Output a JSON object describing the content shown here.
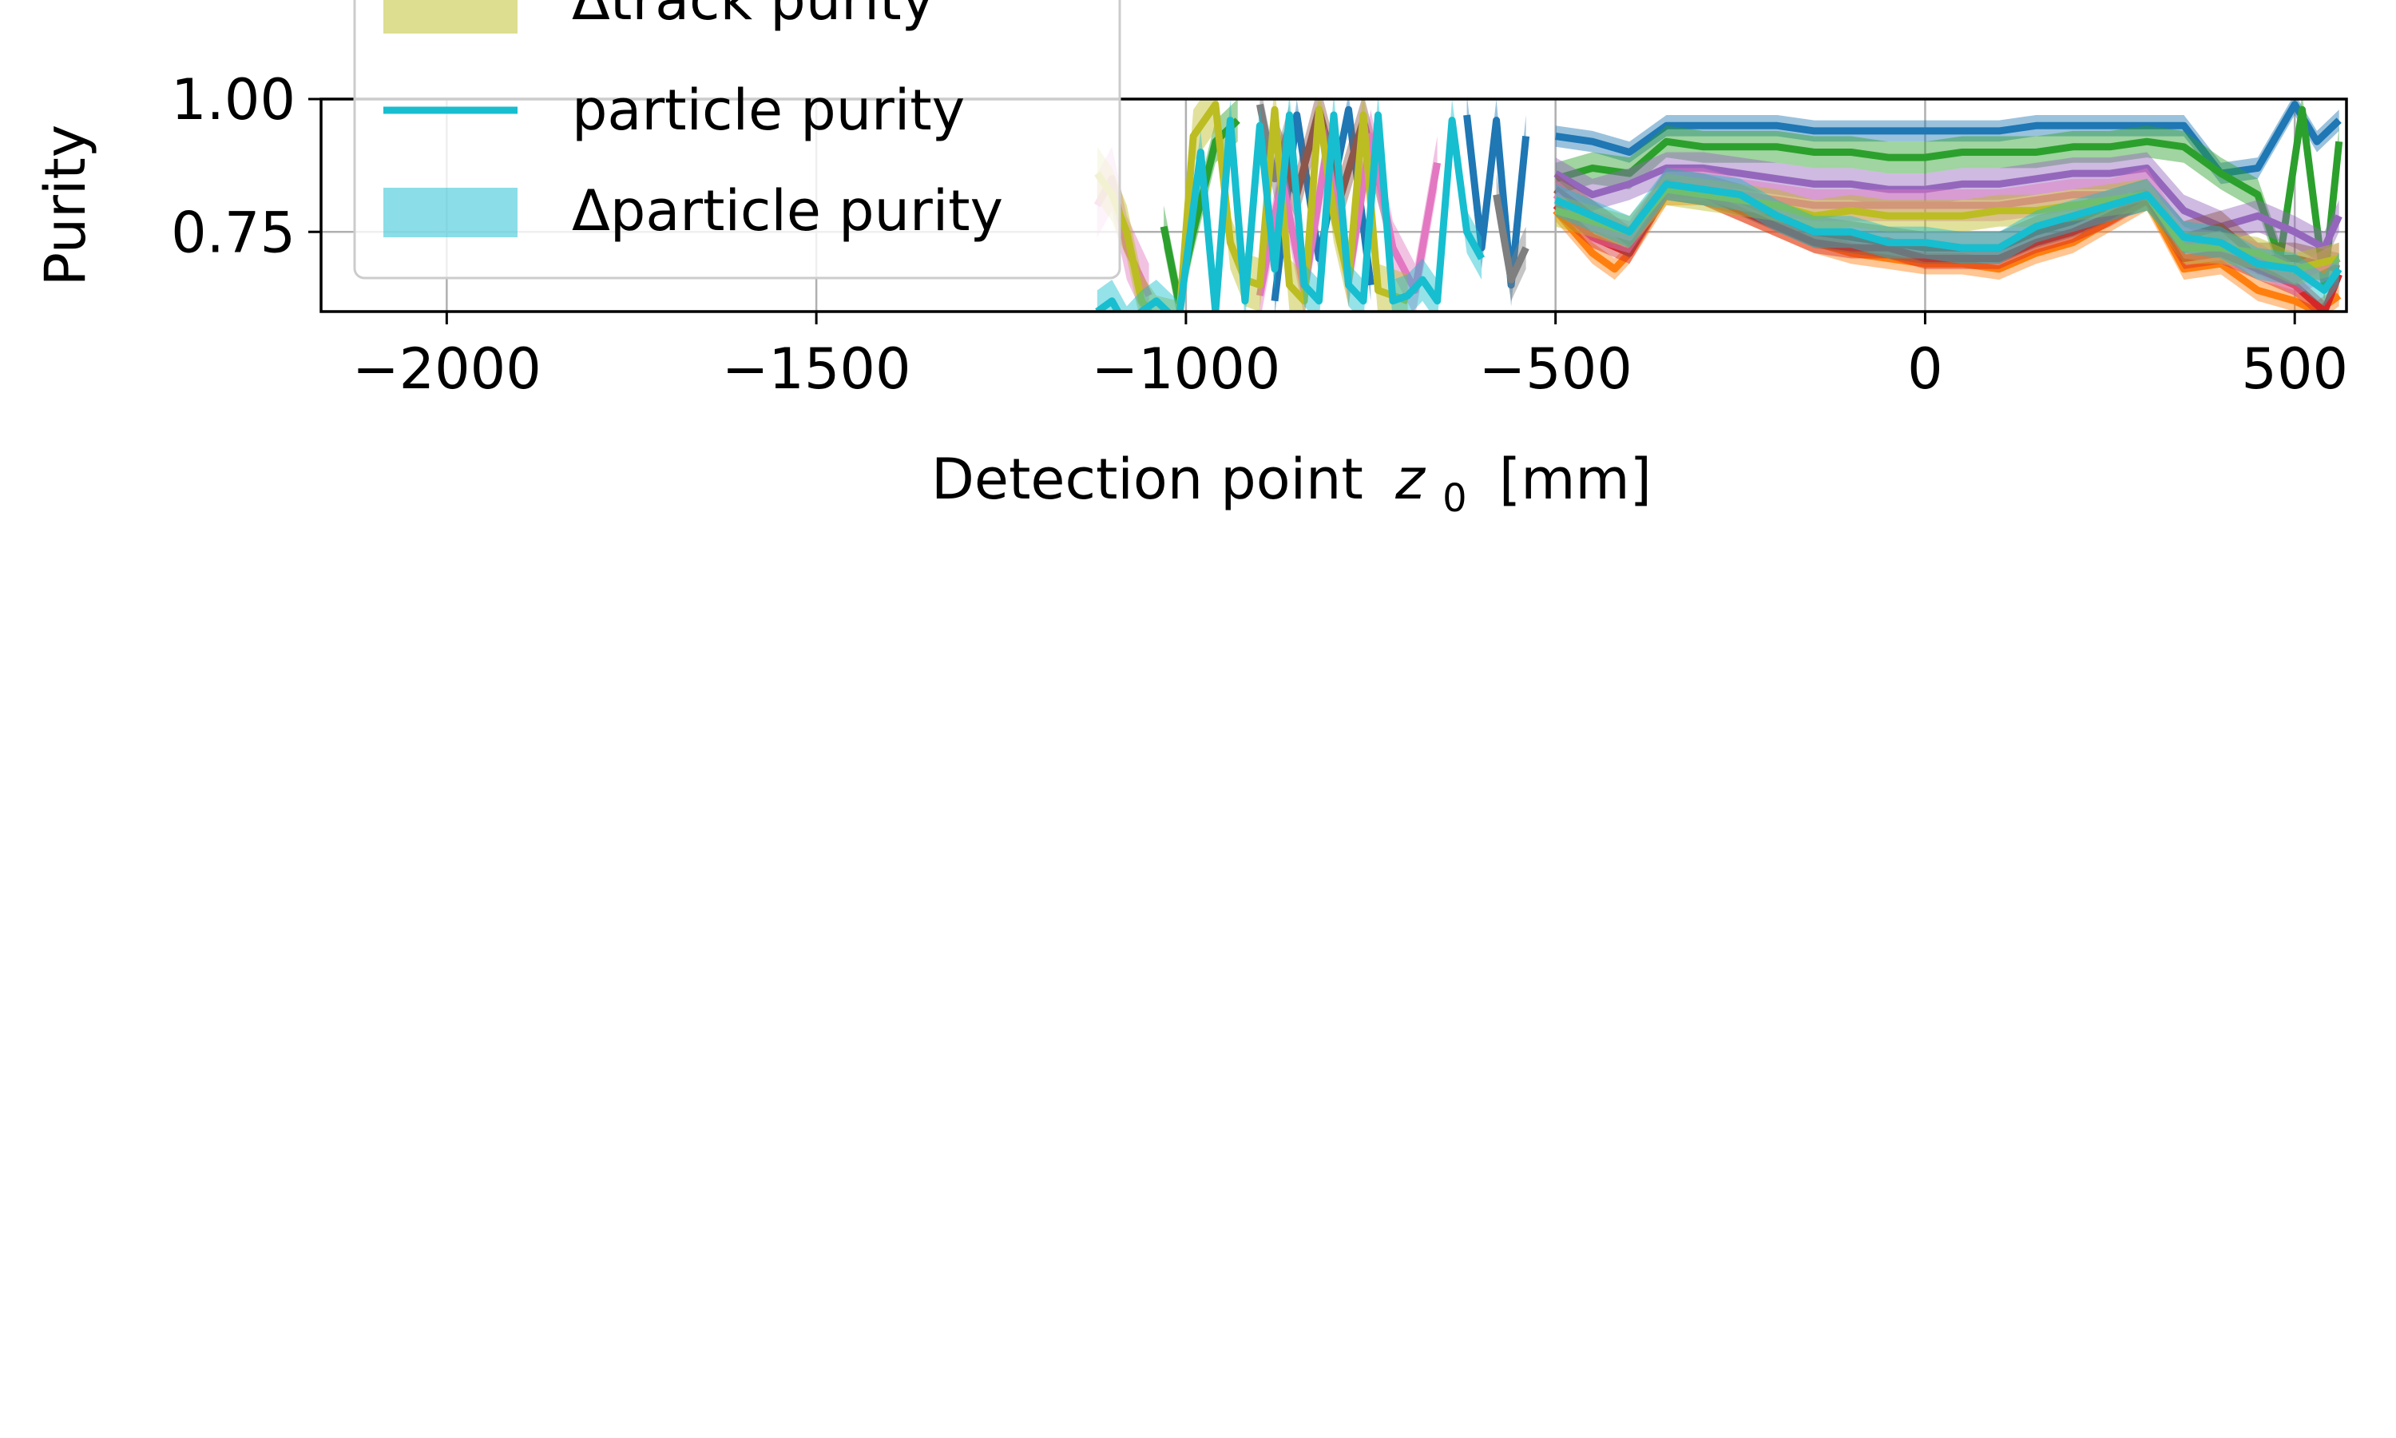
{
  "chart_data": {
    "type": "line",
    "title": "",
    "xlabel": "Detection point",
    "xlabel_math": "z",
    "xlabel_sub": "0",
    "xlabel_unit": "[mm]",
    "ylabel": "Purity",
    "xlim": [
      -2170,
      570
    ],
    "ylim": [
      0.6,
      1.0
    ],
    "xticks": [
      {
        "value": -2000,
        "label": "−2000"
      },
      {
        "value": -1500,
        "label": "−1500"
      },
      {
        "value": -1000,
        "label": "−1000"
      },
      {
        "value": -500,
        "label": "−500"
      },
      {
        "value": 0,
        "label": "0"
      },
      {
        "value": 500,
        "label": "500"
      }
    ],
    "yticks": [
      {
        "value": 1.0,
        "label": "1.00"
      },
      {
        "value": 0.75,
        "label": "0.75"
      }
    ],
    "grid": true,
    "legend": {
      "placement": "top-left",
      "entries": [
        {
          "label": "Δtrack purity",
          "kind": "band",
          "color": "#bcbd22"
        },
        {
          "label": "particle purity",
          "kind": "line",
          "color": "#17becf"
        },
        {
          "label": "Δparticle purity",
          "kind": "band",
          "color": "#17becf"
        }
      ]
    },
    "series": [
      {
        "color": "#1f77b4",
        "segments": [
          {
            "x": [
              -880,
              -850,
              -820,
              -780,
              -750
            ],
            "y": [
              0.62,
              0.97,
              0.7,
              0.98,
              0.65
            ],
            "band": 0.03
          },
          {
            "x": [
              -620,
              -600,
              -580,
              -560,
              -540
            ],
            "y": [
              0.97,
              0.72,
              0.96,
              0.65,
              0.93
            ],
            "band": 0.04
          },
          {
            "x": [
              -500,
              -450,
              -400,
              -350,
              -300,
              -250,
              -200,
              -150,
              -100,
              -50,
              0,
              50,
              100,
              150,
              200,
              250,
              300,
              350,
              400,
              450,
              500,
              530,
              560
            ],
            "y": [
              0.93,
              0.92,
              0.9,
              0.95,
              0.95,
              0.95,
              0.95,
              0.94,
              0.94,
              0.94,
              0.94,
              0.94,
              0.94,
              0.95,
              0.95,
              0.95,
              0.95,
              0.95,
              0.86,
              0.87,
              0.99,
              0.92,
              0.96
            ],
            "band": 0.02
          }
        ]
      },
      {
        "color": "#ff7f0e",
        "segments": [
          {
            "x": [
              -500,
              -450,
              -420,
              -400,
              -350,
              -300,
              -250,
              -200,
              -150,
              -100,
              -50,
              0,
              50,
              100,
              150,
              200,
              250,
              300,
              350,
              400,
              450,
              500,
              530,
              560
            ],
            "y": [
              0.79,
              0.71,
              0.68,
              0.71,
              0.82,
              0.82,
              0.79,
              0.76,
              0.73,
              0.71,
              0.7,
              0.69,
              0.69,
              0.68,
              0.71,
              0.73,
              0.77,
              0.81,
              0.68,
              0.69,
              0.64,
              0.62,
              0.6,
              0.63
            ],
            "band": 0.02
          }
        ]
      },
      {
        "color": "#2ca02c",
        "segments": [
          {
            "x": [
              -1030,
              -1010,
              -990,
              -960,
              -930
            ],
            "y": [
              0.76,
              0.62,
              0.75,
              0.92,
              0.96
            ],
            "band": 0.04
          },
          {
            "x": [
              -500,
              -450,
              -400,
              -350,
              -300,
              -250,
              -200,
              -150,
              -100,
              -50,
              0,
              50,
              100,
              150,
              200,
              250,
              300,
              350,
              400,
              450,
              480,
              510,
              540,
              560
            ],
            "y": [
              0.85,
              0.87,
              0.86,
              0.92,
              0.91,
              0.91,
              0.91,
              0.9,
              0.9,
              0.89,
              0.89,
              0.9,
              0.9,
              0.9,
              0.91,
              0.91,
              0.92,
              0.91,
              0.86,
              0.82,
              0.7,
              0.98,
              0.65,
              0.92
            ],
            "band": 0.03
          }
        ]
      },
      {
        "color": "#d62728",
        "segments": [
          {
            "x": [
              -500,
              -450,
              -400,
              -350,
              -300,
              -250,
              -200,
              -150,
              -100,
              -50,
              0,
              50,
              100,
              150,
              200,
              250,
              300,
              350,
              400,
              450,
              500,
              540,
              560
            ],
            "y": [
              0.8,
              0.74,
              0.71,
              0.83,
              0.82,
              0.79,
              0.76,
              0.73,
              0.72,
              0.72,
              0.7,
              0.7,
              0.7,
              0.73,
              0.75,
              0.78,
              0.82,
              0.7,
              0.71,
              0.68,
              0.65,
              0.6,
              0.67
            ],
            "band": 0.02
          }
        ]
      },
      {
        "color": "#9467bd",
        "segments": [
          {
            "x": [
              -500,
              -450,
              -400,
              -350,
              -300,
              -250,
              -200,
              -150,
              -100,
              -50,
              0,
              50,
              100,
              150,
              200,
              250,
              300,
              350,
              400,
              450,
              500,
              540,
              560
            ],
            "y": [
              0.86,
              0.82,
              0.84,
              0.87,
              0.87,
              0.86,
              0.85,
              0.84,
              0.84,
              0.83,
              0.83,
              0.84,
              0.84,
              0.85,
              0.86,
              0.86,
              0.87,
              0.79,
              0.76,
              0.78,
              0.75,
              0.72,
              0.78
            ],
            "band": 0.03
          }
        ]
      },
      {
        "color": "#8c564b",
        "segments": [
          {
            "x": [
              -880,
              -850,
              -820,
              -790,
              -760,
              -730
            ],
            "y": [
              0.92,
              0.82,
              0.98,
              0.82,
              0.96,
              0.8
            ],
            "band": 0.05
          },
          {
            "x": [
              -500,
              -450,
              -400,
              -350,
              -300,
              -250,
              -200,
              -150,
              -100,
              -50,
              0,
              50,
              100,
              150,
              200,
              250,
              300,
              350,
              400,
              450,
              500,
              560
            ],
            "y": [
              0.83,
              0.78,
              0.73,
              0.84,
              0.83,
              0.81,
              0.78,
              0.75,
              0.74,
              0.73,
              0.72,
              0.72,
              0.72,
              0.75,
              0.77,
              0.8,
              0.82,
              0.74,
              0.76,
              0.7,
              0.7,
              0.68
            ],
            "band": 0.03
          }
        ]
      },
      {
        "color": "#e377c2",
        "segments": [
          {
            "x": [
              -1120,
              -1100,
              -1080,
              -1050
            ],
            "y": [
              0.8,
              0.85,
              0.72,
              0.63
            ],
            "band": 0.06
          },
          {
            "x": [
              -900,
              -870,
              -840,
              -810,
              -780,
              -750,
              -720,
              -690,
              -660
            ],
            "y": [
              0.63,
              0.85,
              0.64,
              0.9,
              0.66,
              0.93,
              0.72,
              0.64,
              0.88
            ],
            "band": 0.05
          },
          {
            "x": [
              -500,
              -450,
              -400,
              -350,
              -300,
              -250,
              -200,
              -150,
              -100,
              -50,
              0,
              50,
              100,
              150,
              200,
              250,
              300,
              350,
              400,
              450,
              500,
              560
            ],
            "y": [
              0.82,
              0.76,
              0.74,
              0.84,
              0.84,
              0.82,
              0.81,
              0.8,
              0.8,
              0.8,
              0.8,
              0.8,
              0.8,
              0.81,
              0.82,
              0.82,
              0.84,
              0.73,
              0.72,
              0.7,
              0.66,
              0.7
            ],
            "band": 0.03
          }
        ]
      },
      {
        "color": "#7f7f7f",
        "segments": [
          {
            "x": [
              -900,
              -880,
              -860
            ],
            "y": [
              0.99,
              0.85,
              0.95
            ],
            "band": 0.04
          },
          {
            "x": [
              -580,
              -560,
              -540
            ],
            "y": [
              0.82,
              0.66,
              0.72
            ],
            "band": 0.04
          }
        ]
      },
      {
        "color": "#bcbd22",
        "segments": [
          {
            "x": [
              -1120,
              -1100,
              -1080,
              -1060,
              -1040,
              -1010,
              -990,
              -960,
              -940,
              -920,
              -900,
              -880,
              -860,
              -840,
              -820,
              -800,
              -780,
              -760,
              -740,
              -720,
              -700
            ],
            "y": [
              0.86,
              0.82,
              0.75,
              0.62,
              0.58,
              0.57,
              0.93,
              0.99,
              0.73,
              0.66,
              0.65,
              0.98,
              0.65,
              0.62,
              0.98,
              0.78,
              0.66,
              0.97,
              0.64,
              0.63,
              0.62
            ],
            "band": 0.05
          },
          {
            "x": [
              -500,
              -450,
              -400,
              -350,
              -300,
              -250,
              -200,
              -150,
              -100,
              -50,
              0,
              50,
              100,
              150,
              200,
              250,
              300,
              350,
              400,
              450,
              500,
              560
            ],
            "y": [
              0.79,
              0.77,
              0.75,
              0.83,
              0.82,
              0.81,
              0.8,
              0.78,
              0.79,
              0.78,
              0.78,
              0.78,
              0.79,
              0.79,
              0.8,
              0.81,
              0.82,
              0.72,
              0.72,
              0.71,
              0.68,
              0.7
            ],
            "band": 0.03
          }
        ]
      },
      {
        "color": "#17becf",
        "segments": [
          {
            "x": [
              -1120,
              -1100,
              -1080,
              -1060,
              -1040,
              -1010,
              -980,
              -960,
              -940,
              -920,
              -900,
              -880,
              -860,
              -840,
              -820,
              -800,
              -780,
              -760,
              -740,
              -720,
              -700,
              -680,
              -660,
              -640,
              -620,
              -600
            ],
            "y": [
              0.6,
              0.62,
              0.57,
              0.6,
              0.62,
              0.58,
              0.9,
              0.6,
              0.96,
              0.62,
              0.95,
              0.68,
              0.97,
              0.65,
              0.62,
              0.97,
              0.65,
              0.62,
              0.97,
              0.62,
              0.63,
              0.66,
              0.62,
              0.96,
              0.75,
              0.7
            ],
            "band": 0.04
          },
          {
            "x": [
              -500,
              -450,
              -400,
              -350,
              -300,
              -250,
              -200,
              -150,
              -100,
              -50,
              0,
              50,
              100,
              150,
              200,
              250,
              300,
              350,
              400,
              450,
              500,
              540,
              560
            ],
            "y": [
              0.81,
              0.78,
              0.75,
              0.84,
              0.83,
              0.82,
              0.78,
              0.75,
              0.75,
              0.73,
              0.73,
              0.72,
              0.72,
              0.76,
              0.78,
              0.8,
              0.82,
              0.74,
              0.73,
              0.69,
              0.68,
              0.64,
              0.68
            ],
            "band": 0.03
          }
        ]
      }
    ]
  }
}
